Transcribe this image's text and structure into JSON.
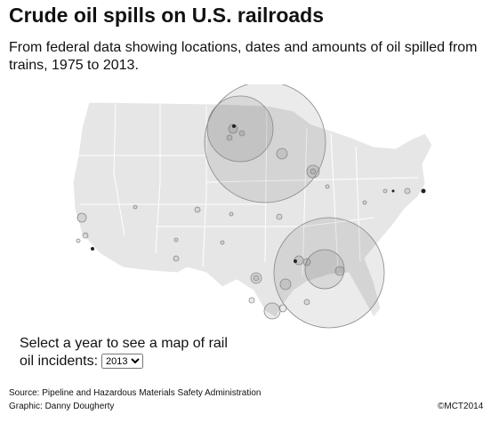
{
  "header": {
    "title": "Crude oil spills on U.S. railroads",
    "subtitle": "From federal data showing locations, dates and amounts of oil spilled from trains, 1975 to 2013."
  },
  "controls": {
    "prompt": "Select a year to see a map of rail oil incidents:",
    "year": "2013"
  },
  "footer": {
    "source": "Source: Pipeline and Hazardous Materials Safety Administration",
    "graphic": "Graphic: Danny Dougherty",
    "copyright": "©MCT2014"
  }
}
